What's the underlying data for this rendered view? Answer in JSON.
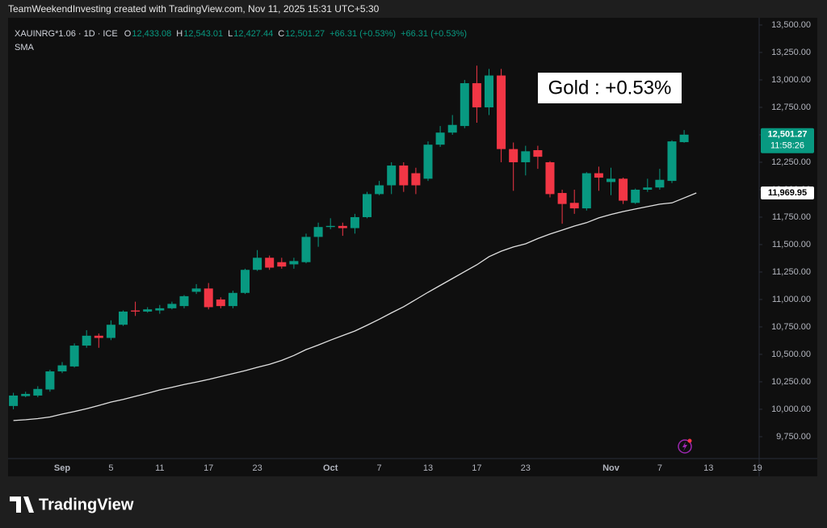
{
  "header": "TeamWeekendInvesting created with TradingView.com, Nov 11, 2025 15:31 UTC+5:30",
  "legend": {
    "symbol": "XAUINRG*1.06 · 1D · ICE",
    "items": [
      {
        "label": "O",
        "value": "12,433.08"
      },
      {
        "label": "H",
        "value": "12,543.01"
      },
      {
        "label": "L",
        "value": "12,427.44"
      },
      {
        "label": "C",
        "value": "12,501.27"
      }
    ],
    "changes": [
      "+66.31 (+0.53%)",
      "+66.31 (+0.53%)"
    ],
    "indicator": "SMA"
  },
  "footer": {
    "brand": "TradingView"
  },
  "chart_data": {
    "type": "candlestick",
    "annotation": "Gold : +0.53%",
    "up_color": "#089981",
    "down_color": "#f23645",
    "categories": [
      null,
      null,
      null,
      null,
      "Sep",
      null,
      null,
      null,
      "5",
      null,
      null,
      null,
      "11",
      null,
      null,
      null,
      "17",
      null,
      null,
      null,
      "23",
      null,
      null,
      null,
      null,
      null,
      "Oct",
      null,
      null,
      null,
      "7",
      null,
      null,
      null,
      "13",
      null,
      null,
      null,
      "17",
      null,
      null,
      null,
      "23",
      null,
      null,
      null,
      null,
      null,
      null,
      "Nov",
      null,
      null,
      null,
      "7",
      null,
      null,
      null,
      "13",
      null,
      null,
      null,
      "19"
    ],
    "open": [
      10030,
      10120,
      10125,
      10180,
      10345,
      10390,
      10580,
      10670,
      10650,
      10770,
      10900,
      10890,
      10900,
      10920,
      10940,
      11070,
      11100,
      11000,
      10940,
      11060,
      11270,
      11380,
      11340,
      11320,
      11340,
      11570,
      11660,
      11670,
      11650,
      11750,
      11960,
      12040,
      12220,
      12150,
      12100,
      12410,
      12520,
      12580,
      12970,
      12750,
      13040,
      12370,
      12250,
      12360,
      12250,
      11970,
      11880,
      11830,
      12150,
      12070,
      12100,
      11880,
      12000,
      12020,
      12080,
      12433.08,
      null,
      null,
      null,
      null,
      null,
      null
    ],
    "high": [
      10150,
      10160,
      10210,
      10360,
      10430,
      10600,
      10720,
      10690,
      10810,
      10900,
      10980,
      10930,
      10950,
      10980,
      11040,
      11140,
      11150,
      11020,
      11080,
      11280,
      11450,
      11400,
      11380,
      11380,
      11600,
      11700,
      11740,
      11700,
      11780,
      11980,
      12080,
      12250,
      12250,
      12200,
      12440,
      12580,
      12680,
      13000,
      13130,
      13100,
      13100,
      12430,
      12400,
      12400,
      12260,
      12000,
      12000,
      12160,
      12210,
      12200,
      12110,
      12010,
      12100,
      12190,
      12450,
      12543.01,
      null,
      null,
      null,
      null,
      null,
      null
    ],
    "low": [
      10000,
      10110,
      10110,
      10160,
      10330,
      10380,
      10560,
      10560,
      10630,
      10760,
      10850,
      10880,
      10870,
      10910,
      10920,
      11050,
      10910,
      10920,
      10920,
      11050,
      11260,
      11270,
      11280,
      11280,
      11330,
      11480,
      11640,
      11580,
      11600,
      11740,
      11950,
      11960,
      11980,
      11960,
      12080,
      12390,
      12500,
      12560,
      12610,
      12680,
      12250,
      11990,
      12130,
      12190,
      11930,
      11690,
      11780,
      11810,
      11990,
      11950,
      11870,
      11870,
      11980,
      12000,
      12060,
      12427.44,
      null,
      null,
      null,
      null,
      null,
      null
    ],
    "close": [
      10125,
      10140,
      10185,
      10345,
      10400,
      10580,
      10670,
      10650,
      10770,
      10890,
      10890,
      10910,
      10920,
      10960,
      11030,
      11100,
      10930,
      10940,
      11060,
      11270,
      11380,
      11290,
      11300,
      11350,
      11570,
      11660,
      11670,
      11650,
      11750,
      11960,
      12040,
      12220,
      12040,
      12040,
      12410,
      12520,
      12590,
      12970,
      12750,
      13040,
      12370,
      12250,
      12350,
      12300,
      11960,
      11870,
      11830,
      12150,
      12110,
      12100,
      11900,
      12000,
      12020,
      12090,
      12440,
      12501.27,
      null,
      null,
      null,
      null,
      null,
      null
    ],
    "sma": {
      "name": "SMA",
      "color": "#e0e0e0",
      "values": [
        9897,
        9905,
        9915,
        9930,
        9956,
        9980,
        10005,
        10035,
        10066,
        10090,
        10118,
        10146,
        10176,
        10200,
        10225,
        10248,
        10272,
        10298,
        10325,
        10352,
        10382,
        10410,
        10445,
        10490,
        10544,
        10585,
        10630,
        10672,
        10713,
        10765,
        10820,
        10878,
        10934,
        11000,
        11066,
        11128,
        11191,
        11254,
        11316,
        11390,
        11440,
        11478,
        11507,
        11555,
        11596,
        11632,
        11669,
        11700,
        11743,
        11775,
        11801,
        11824,
        11846,
        11868,
        11880,
        11925,
        11969.95,
        null,
        null,
        null,
        null,
        null
      ]
    },
    "price_labels": [
      {
        "value": 12501.27,
        "label": "12,501.27",
        "sub": "11:58:26",
        "color": "#089981"
      },
      {
        "value": 11969.95,
        "label": "11,969.95",
        "color": "#ffffff"
      }
    ],
    "ylim": [
      9551,
      13566
    ],
    "yticks": [
      {
        "value": 9750,
        "label": "9,750.00"
      },
      {
        "value": 10000,
        "label": "10,000.00"
      },
      {
        "value": 10250,
        "label": "10,250.00"
      },
      {
        "value": 10500,
        "label": "10,500.00"
      },
      {
        "value": 10750,
        "label": "10,750.00"
      },
      {
        "value": 11000,
        "label": "11,000.00"
      },
      {
        "value": 11250,
        "label": "11,250.00"
      },
      {
        "value": 11500,
        "label": "11,500.00"
      },
      {
        "value": 11750,
        "label": "11,750.00"
      },
      {
        "value": 12000,
        "label": "12,000.00"
      },
      {
        "value": 12250,
        "label": "12,250.00"
      },
      {
        "value": 12500,
        "label": "12,500.00"
      },
      {
        "value": 12750,
        "label": "12,750.00"
      },
      {
        "value": 13000,
        "label": "13,000.00"
      },
      {
        "value": 13250,
        "label": "13,250.00"
      },
      {
        "value": 13500,
        "label": "13,500.00"
      }
    ],
    "grid": false
  }
}
